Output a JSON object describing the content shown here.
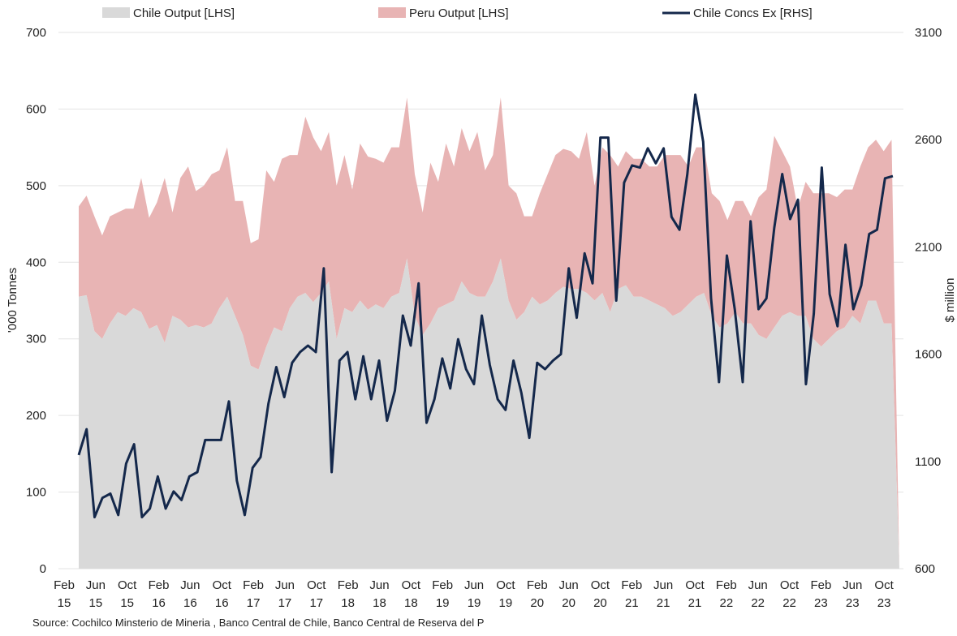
{
  "chart_data": {
    "type": "area",
    "y_left_label": "'000 Tonnes",
    "y_right_label": "$ million",
    "y_left_range": [
      0,
      700
    ],
    "y_right_range": [
      600,
      3100
    ],
    "y_left_ticks": [
      "0",
      "100",
      "200",
      "300",
      "400",
      "500",
      "600",
      "700"
    ],
    "y_right_ticks": [
      "600",
      "1100",
      "1600",
      "2100",
      "2600",
      "3100"
    ],
    "x_tick_labels": [
      [
        "Feb",
        "15"
      ],
      [
        "Jun",
        "15"
      ],
      [
        "Oct",
        "15"
      ],
      [
        "Feb",
        "16"
      ],
      [
        "Jun",
        "16"
      ],
      [
        "Oct",
        "16"
      ],
      [
        "Feb",
        "17"
      ],
      [
        "Jun",
        "17"
      ],
      [
        "Oct",
        "17"
      ],
      [
        "Feb",
        "18"
      ],
      [
        "Jun",
        "18"
      ],
      [
        "Oct",
        "18"
      ],
      [
        "Feb",
        "19"
      ],
      [
        "Jun",
        "19"
      ],
      [
        "Oct",
        "19"
      ],
      [
        "Feb",
        "20"
      ],
      [
        "Jun",
        "20"
      ],
      [
        "Oct",
        "20"
      ],
      [
        "Feb",
        "21"
      ],
      [
        "Jun",
        "21"
      ],
      [
        "Oct",
        "21"
      ],
      [
        "Feb",
        "22"
      ],
      [
        "Jun",
        "22"
      ],
      [
        "Oct",
        "22"
      ],
      [
        "Feb",
        "23"
      ],
      [
        "Jun",
        "23"
      ],
      [
        "Oct",
        "23"
      ]
    ],
    "grid": true,
    "legend_position": "top",
    "series": [
      {
        "name": "Chile Output [LHS]",
        "axis": "left",
        "kind": "area",
        "color": "#d9d9d9",
        "start": "Jan 15",
        "values": [
          355,
          357,
          310,
          300,
          320,
          335,
          330,
          340,
          335,
          313,
          318,
          295,
          330,
          325,
          315,
          318,
          315,
          320,
          340,
          355,
          330,
          305,
          265,
          260,
          290,
          315,
          310,
          340,
          355,
          360,
          348,
          360,
          375,
          300,
          340,
          335,
          350,
          338,
          345,
          340,
          355,
          360,
          405,
          330,
          305,
          320,
          340,
          345,
          350,
          375,
          360,
          355,
          355,
          375,
          405,
          350,
          325,
          335,
          355,
          345,
          350,
          360,
          368,
          365,
          365,
          360,
          350,
          360,
          335,
          365,
          370,
          355,
          355,
          350,
          345,
          340,
          330,
          335,
          345,
          355,
          360,
          330,
          315,
          320,
          335,
          320,
          320,
          305,
          300,
          315,
          330,
          335,
          330,
          330,
          300,
          290,
          300,
          310,
          315,
          330,
          320,
          350,
          350,
          320,
          320,
          0
        ]
      },
      {
        "name": "Peru Output [LHS]",
        "axis": "left",
        "kind": "stacked-area",
        "color": "#e8b4b4",
        "start": "Jan 15",
        "values": [
          118,
          130,
          150,
          135,
          140,
          130,
          140,
          130,
          175,
          145,
          160,
          215,
          135,
          185,
          210,
          175,
          185,
          195,
          180,
          195,
          150,
          175,
          160,
          170,
          230,
          190,
          225,
          200,
          185,
          230,
          215,
          185,
          195,
          200,
          200,
          160,
          205,
          200,
          190,
          190,
          195,
          190,
          210,
          185,
          160,
          210,
          165,
          210,
          175,
          200,
          185,
          215,
          165,
          165,
          210,
          150,
          165,
          125,
          105,
          145,
          165,
          180,
          180,
          180,
          170,
          210,
          150,
          190,
          205,
          160,
          175,
          180,
          180,
          175,
          180,
          200,
          210,
          205,
          180,
          195,
          190,
          160,
          165,
          135,
          145,
          160,
          140,
          180,
          195,
          250,
          215,
          190,
          140,
          175,
          190,
          200,
          190,
          175,
          180,
          165,
          205,
          200,
          210,
          225,
          240,
          0
        ]
      },
      {
        "name": "Chile Concs Ex [RHS]",
        "axis": "right",
        "kind": "line",
        "color": "#14284b",
        "start": "Feb 15",
        "values": [
          1130,
          1250,
          840,
          930,
          950,
          850,
          1090,
          1180,
          840,
          880,
          1030,
          880,
          960,
          920,
          1030,
          1050,
          1200,
          1200,
          1200,
          1380,
          1010,
          850,
          1070,
          1120,
          1370,
          1540,
          1400,
          1560,
          1610,
          1640,
          1610,
          2000,
          1050,
          1570,
          1610,
          1390,
          1590,
          1390,
          1570,
          1290,
          1430,
          1780,
          1640,
          1930,
          1280,
          1390,
          1580,
          1440,
          1670,
          1530,
          1460,
          1780,
          1550,
          1390,
          1340,
          1570,
          1420,
          1210,
          1560,
          1530,
          1570,
          1600,
          2000,
          1770,
          2070,
          1930,
          2610,
          2610,
          1850,
          2400,
          2480,
          2470,
          2560,
          2490,
          2560,
          2240,
          2180,
          2440,
          2810,
          2590,
          1860,
          1470,
          2060,
          1810,
          1470,
          2220,
          1810,
          1860,
          2190,
          2440,
          2230,
          2320,
          1460,
          1790,
          2470,
          1880,
          1730,
          2110,
          1810,
          1920,
          2160,
          2180,
          2420,
          2430
        ]
      }
    ]
  },
  "source": "Source: Cochilco Minsterio de Mineria , Banco Central de Chile, Banco Central de Reserva del P"
}
